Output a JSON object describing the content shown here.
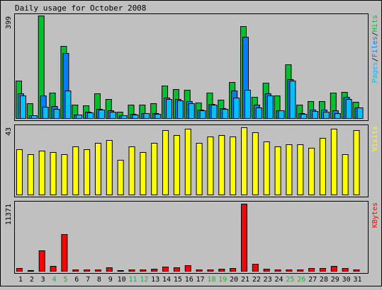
{
  "title": "Daily usage for October 2008",
  "colors": {
    "background": "#c0c0c0",
    "hits": "#00c030",
    "files": "#0080ff",
    "pages": "#00c0ff",
    "visits": "#ffff00",
    "kbytes": "#ff0000",
    "weekend_label": "#00c030",
    "weekday_label": "#000000"
  },
  "chart_data": [
    {
      "type": "bar",
      "panel": "hits-files-pages",
      "legend": [
        {
          "name": "Pages",
          "color": "#00c0ff"
        },
        {
          "name": "Files",
          "color": "#0080ff"
        },
        {
          "name": "Hits",
          "color": "#00c030"
        }
      ],
      "ymax_label": "399",
      "ylim": [
        0,
        399
      ],
      "categories": [
        "1",
        "2",
        "3",
        "4",
        "5",
        "6",
        "7",
        "8",
        "9",
        "10",
        "11",
        "12",
        "13",
        "14",
        "15",
        "16",
        "17",
        "18",
        "19",
        "20",
        "21",
        "22",
        "23",
        "24",
        "25",
        "26",
        "27",
        "28",
        "29",
        "30",
        "31"
      ],
      "series": [
        {
          "name": "Hits",
          "values": [
            145,
            57,
            399,
            99,
            280,
            52,
            50,
            96,
            75,
            25,
            52,
            52,
            58,
            126,
            113,
            111,
            60,
            98,
            72,
            140,
            359,
            82,
            137,
            89,
            208,
            52,
            65,
            65,
            99,
            103,
            64
          ]
        },
        {
          "name": "Files",
          "values": [
            97,
            10,
            87,
            47,
            253,
            13,
            24,
            35,
            30,
            11,
            16,
            20,
            18,
            80,
            75,
            66,
            32,
            56,
            38,
            108,
            316,
            52,
            96,
            31,
            150,
            20,
            32,
            32,
            29,
            82,
            42
          ]
        },
        {
          "name": "Pages",
          "values": [
            89,
            10,
            43,
            37,
            108,
            13,
            22,
            33,
            25,
            10,
            15,
            18,
            16,
            73,
            70,
            57,
            30,
            51,
            35,
            80,
            110,
            42,
            89,
            30,
            145,
            16,
            27,
            26,
            20,
            74,
            40
          ]
        }
      ]
    },
    {
      "type": "bar",
      "panel": "visits",
      "legend": [
        {
          "name": "Visits",
          "color": "#ffff00"
        }
      ],
      "ymax_label": "43",
      "ylim": [
        0,
        43
      ],
      "categories": [
        "1",
        "2",
        "3",
        "4",
        "5",
        "6",
        "7",
        "8",
        "9",
        "10",
        "11",
        "12",
        "13",
        "14",
        "15",
        "16",
        "17",
        "18",
        "19",
        "20",
        "21",
        "22",
        "23",
        "24",
        "25",
        "26",
        "27",
        "28",
        "29",
        "30",
        "31"
      ],
      "series": [
        {
          "name": "Visits",
          "values": [
            29,
            26,
            28,
            27,
            26,
            31,
            29,
            33,
            35,
            22,
            31,
            27,
            33,
            41,
            38,
            42,
            33,
            37,
            38,
            37,
            43,
            40,
            34,
            31,
            32,
            32,
            30,
            36,
            42,
            26,
            41
          ]
        }
      ]
    },
    {
      "type": "bar",
      "panel": "kbytes",
      "legend": [
        {
          "name": "KBytes",
          "color": "#ff0000"
        }
      ],
      "ymax_label": "11371",
      "ylim": [
        0,
        11371
      ],
      "categories": [
        "1",
        "2",
        "3",
        "4",
        "5",
        "6",
        "7",
        "8",
        "9",
        "10",
        "11",
        "12",
        "13",
        "14",
        "15",
        "16",
        "17",
        "18",
        "19",
        "20",
        "21",
        "22",
        "23",
        "24",
        "25",
        "26",
        "27",
        "28",
        "29",
        "30",
        "31"
      ],
      "series": [
        {
          "name": "KBytes",
          "values": [
            480,
            140,
            3480,
            890,
            6190,
            195,
            180,
            230,
            580,
            160,
            200,
            220,
            320,
            720,
            570,
            920,
            240,
            220,
            390,
            420,
            11371,
            1140,
            350,
            270,
            250,
            210,
            480,
            500,
            810,
            460,
            270
          ]
        }
      ]
    }
  ],
  "x_label_colors": [
    "#000000",
    "#000000",
    "#000000",
    "#00c030",
    "#00c030",
    "#000000",
    "#000000",
    "#000000",
    "#000000",
    "#000000",
    "#00c030",
    "#00c030",
    "#000000",
    "#000000",
    "#000000",
    "#000000",
    "#000000",
    "#00c030",
    "#00c030",
    "#000000",
    "#000000",
    "#000000",
    "#000000",
    "#000000",
    "#00c030",
    "#00c030",
    "#000000",
    "#000000",
    "#000000",
    "#000000",
    "#000000"
  ]
}
